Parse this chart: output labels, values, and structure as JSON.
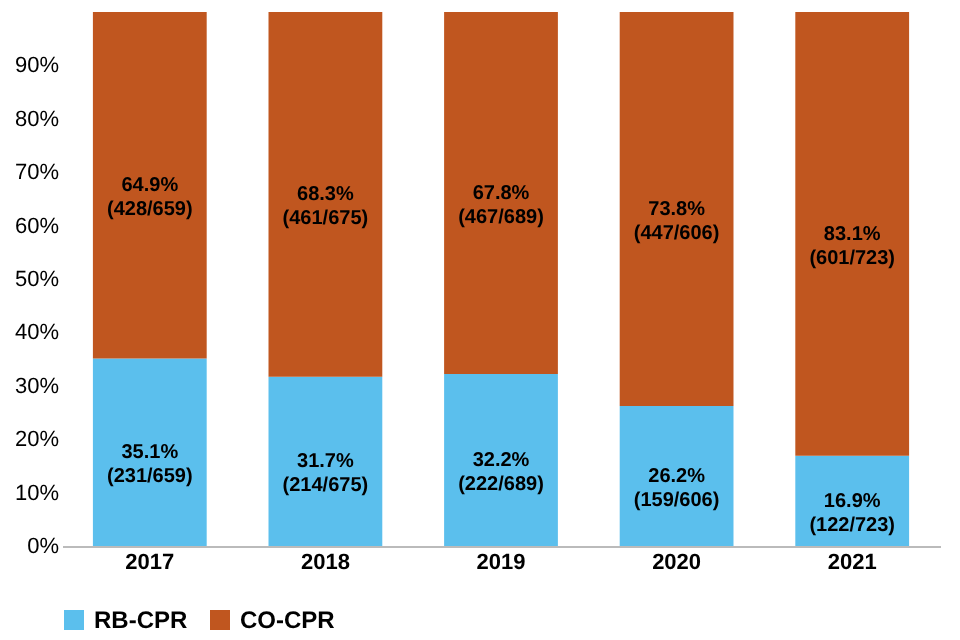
{
  "chart_data": {
    "type": "bar",
    "stacked": true,
    "categories": [
      "2017",
      "2018",
      "2019",
      "2020",
      "2021"
    ],
    "series": [
      {
        "name": "RB-CPR",
        "color": "#5bbfed",
        "values": [
          35.1,
          31.7,
          32.2,
          26.2,
          16.9
        ],
        "value_labels": [
          "35.1%\n(231/659)",
          "31.7%\n(214/675)",
          "32.2%\n(222/689)",
          "26.2%\n(159/606)",
          "16.9%\n(122/723)"
        ]
      },
      {
        "name": "CO-CPR",
        "color": "#c0561f",
        "values": [
          64.9,
          68.3,
          67.8,
          73.8,
          83.1
        ],
        "value_labels": [
          "64.9%\n(428/659)",
          "68.3%\n(461/675)",
          "67.8%\n(467/689)",
          "73.8%\n(447/606)",
          "83.1%\n(601/723)"
        ]
      }
    ],
    "ylim": [
      0,
      100
    ],
    "yticks": [
      {
        "value": 0,
        "label": "0%"
      },
      {
        "value": 10,
        "label": "10%"
      },
      {
        "value": 20,
        "label": "20%"
      },
      {
        "value": 30,
        "label": "30%"
      },
      {
        "value": 40,
        "label": "40%"
      },
      {
        "value": 50,
        "label": "50%"
      },
      {
        "value": 60,
        "label": "60%"
      },
      {
        "value": 70,
        "label": "70%"
      },
      {
        "value": 80,
        "label": "80%"
      },
      {
        "value": 90,
        "label": "90%"
      }
    ],
    "legend": "bottom"
  }
}
